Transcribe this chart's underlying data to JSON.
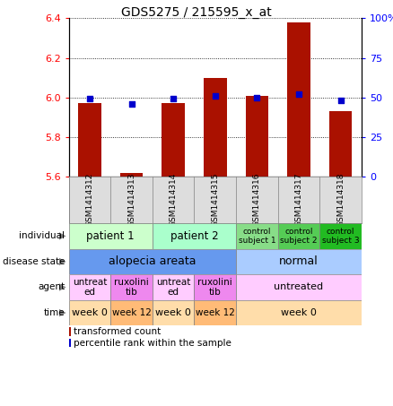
{
  "title": "GDS5275 / 215595_x_at",
  "samples": [
    "GSM1414312",
    "GSM1414313",
    "GSM1414314",
    "GSM1414315",
    "GSM1414316",
    "GSM1414317",
    "GSM1414318"
  ],
  "bar_values": [
    5.97,
    5.62,
    5.97,
    6.1,
    6.01,
    6.38,
    5.93
  ],
  "bar_base": 5.6,
  "percentile_values": [
    49,
    46,
    49,
    51,
    50,
    52,
    48
  ],
  "ylim_left": [
    5.6,
    6.4
  ],
  "ylim_right": [
    0,
    100
  ],
  "yticks_left": [
    5.6,
    5.8,
    6.0,
    6.2,
    6.4
  ],
  "yticks_right": [
    0,
    25,
    50,
    75,
    100
  ],
  "bar_color": "#aa1100",
  "dot_color": "#0000cc",
  "individual_row": {
    "label": "individual",
    "cells": [
      {
        "text": "patient 1",
        "span": [
          0,
          1
        ],
        "color": "#ccffcc",
        "fontsize": 8.5
      },
      {
        "text": "patient 2",
        "span": [
          2,
          3
        ],
        "color": "#aaffcc",
        "fontsize": 8.5
      },
      {
        "text": "control\nsubject 1",
        "span": [
          4,
          4
        ],
        "color": "#88dd88",
        "fontsize": 6.5
      },
      {
        "text": "control\nsubject 2",
        "span": [
          5,
          5
        ],
        "color": "#55cc55",
        "fontsize": 6.5
      },
      {
        "text": "control\nsubject 3",
        "span": [
          6,
          6
        ],
        "color": "#22bb22",
        "fontsize": 6.5
      }
    ]
  },
  "disease_row": {
    "label": "disease state",
    "cells": [
      {
        "text": "alopecia areata",
        "span": [
          0,
          3
        ],
        "color": "#6699ee",
        "fontsize": 9
      },
      {
        "text": "normal",
        "span": [
          4,
          6
        ],
        "color": "#aaccff",
        "fontsize": 9
      }
    ]
  },
  "agent_row": {
    "label": "agent",
    "cells": [
      {
        "text": "untreat\ned",
        "span": [
          0,
          0
        ],
        "color": "#ffccff",
        "fontsize": 7.5
      },
      {
        "text": "ruxolini\ntib",
        "span": [
          1,
          1
        ],
        "color": "#ee88ee",
        "fontsize": 7.5
      },
      {
        "text": "untreat\ned",
        "span": [
          2,
          2
        ],
        "color": "#ffccff",
        "fontsize": 7.5
      },
      {
        "text": "ruxolini\ntib",
        "span": [
          3,
          3
        ],
        "color": "#ee88ee",
        "fontsize": 7.5
      },
      {
        "text": "untreated",
        "span": [
          4,
          6
        ],
        "color": "#ffccff",
        "fontsize": 8
      }
    ]
  },
  "time_row": {
    "label": "time",
    "cells": [
      {
        "text": "week 0",
        "span": [
          0,
          0
        ],
        "color": "#ffddaa",
        "fontsize": 8
      },
      {
        "text": "week 12",
        "span": [
          1,
          1
        ],
        "color": "#ffbb77",
        "fontsize": 7.5
      },
      {
        "text": "week 0",
        "span": [
          2,
          2
        ],
        "color": "#ffddaa",
        "fontsize": 8
      },
      {
        "text": "week 12",
        "span": [
          3,
          3
        ],
        "color": "#ffbb77",
        "fontsize": 7.5
      },
      {
        "text": "week 0",
        "span": [
          4,
          6
        ],
        "color": "#ffddaa",
        "fontsize": 8
      }
    ]
  }
}
